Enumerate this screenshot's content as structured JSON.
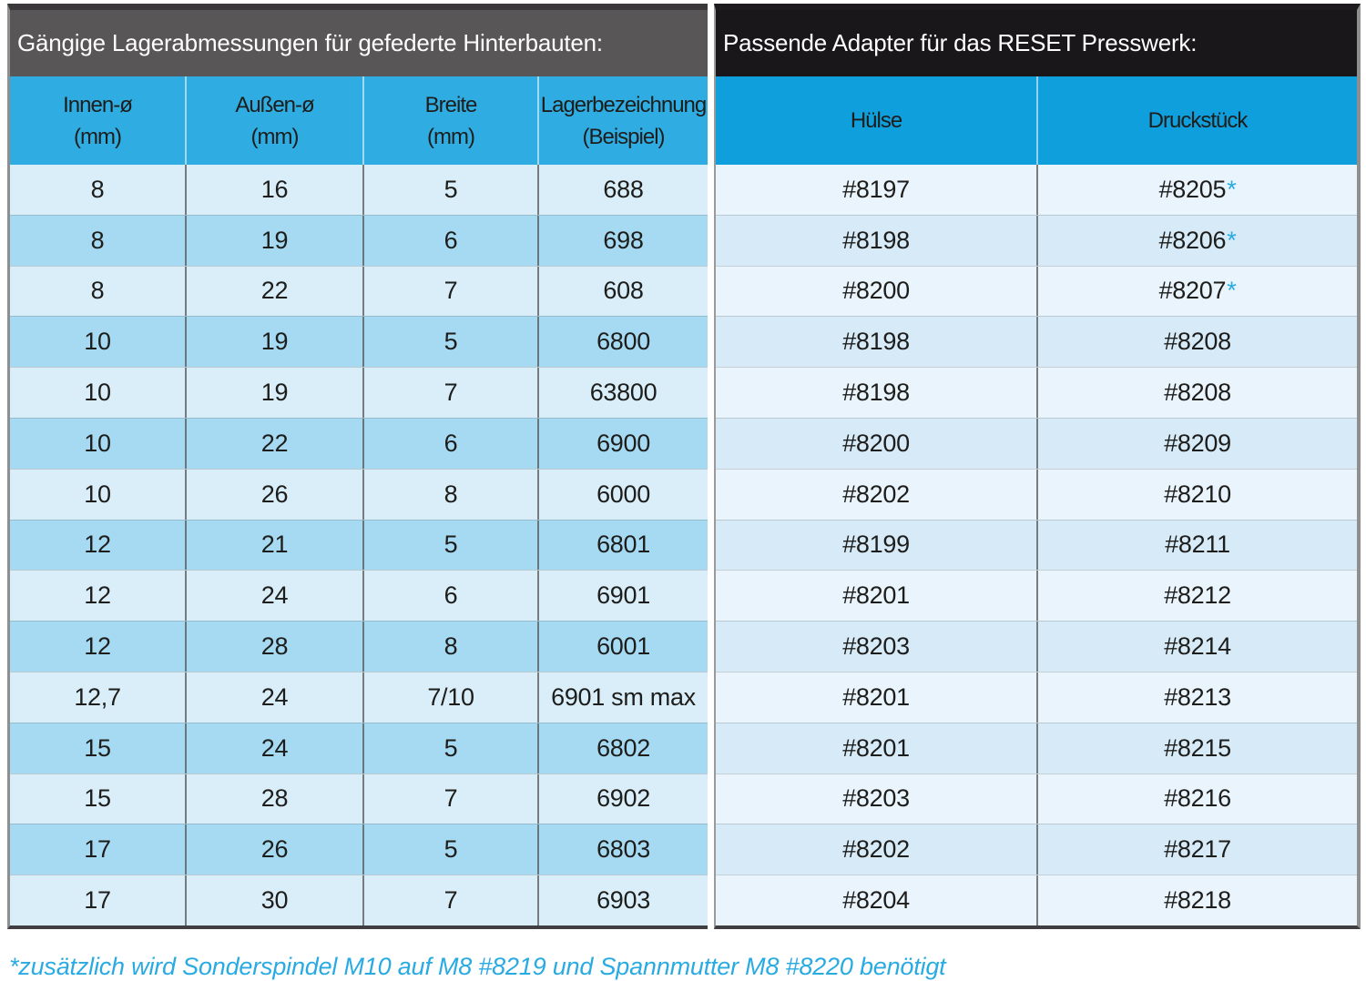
{
  "left_table": {
    "title": "Gängige Lagerabmessungen für gefederte Hinterbauten:",
    "columns": [
      {
        "line1": "Innen-ø",
        "line2": "(mm)"
      },
      {
        "line1": "Außen-ø",
        "line2": "(mm)"
      },
      {
        "line1": "Breite",
        "line2": "(mm)"
      },
      {
        "line1": "Lagerbezeichnung",
        "line2": "(Beispiel)"
      }
    ],
    "rows": [
      [
        "8",
        "16",
        "5",
        "688"
      ],
      [
        "8",
        "19",
        "6",
        "698"
      ],
      [
        "8",
        "22",
        "7",
        "608"
      ],
      [
        "10",
        "19",
        "5",
        "6800"
      ],
      [
        "10",
        "19",
        "7",
        "63800"
      ],
      [
        "10",
        "22",
        "6",
        "6900"
      ],
      [
        "10",
        "26",
        "8",
        "6000"
      ],
      [
        "12",
        "21",
        "5",
        "6801"
      ],
      [
        "12",
        "24",
        "6",
        "6901"
      ],
      [
        "12",
        "28",
        "8",
        "6001"
      ],
      [
        "12,7",
        "24",
        "7/10",
        "6901 sm max"
      ],
      [
        "15",
        "24",
        "5",
        "6802"
      ],
      [
        "15",
        "28",
        "7",
        "6902"
      ],
      [
        "17",
        "26",
        "5",
        "6803"
      ],
      [
        "17",
        "30",
        "7",
        "6903"
      ]
    ]
  },
  "right_table": {
    "title": "Passende Adapter für das RESET Presswerk:",
    "columns": [
      "Hülse",
      "Druckstück"
    ],
    "asterisk_symbol": "*",
    "rows": [
      {
        "huelse": "#8197",
        "druckstueck": "#8205",
        "asterisk": true
      },
      {
        "huelse": "#8198",
        "druckstueck": "#8206",
        "asterisk": true
      },
      {
        "huelse": "#8200",
        "druckstueck": "#8207",
        "asterisk": true
      },
      {
        "huelse": "#8198",
        "druckstueck": "#8208",
        "asterisk": false
      },
      {
        "huelse": "#8198",
        "druckstueck": "#8208",
        "asterisk": false
      },
      {
        "huelse": "#8200",
        "druckstueck": "#8209",
        "asterisk": false
      },
      {
        "huelse": "#8202",
        "druckstueck": "#8210",
        "asterisk": false
      },
      {
        "huelse": "#8199",
        "druckstueck": "#8211",
        "asterisk": false
      },
      {
        "huelse": "#8201",
        "druckstueck": "#8212",
        "asterisk": false
      },
      {
        "huelse": "#8203",
        "druckstueck": "#8214",
        "asterisk": false
      },
      {
        "huelse": "#8201",
        "druckstueck": "#8213",
        "asterisk": false
      },
      {
        "huelse": "#8201",
        "druckstueck": "#8215",
        "asterisk": false
      },
      {
        "huelse": "#8203",
        "druckstueck": "#8216",
        "asterisk": false
      },
      {
        "huelse": "#8202",
        "druckstueck": "#8217",
        "asterisk": false
      },
      {
        "huelse": "#8204",
        "druckstueck": "#8218",
        "asterisk": false
      }
    ]
  },
  "footnote": "*zusätzlich wird Sonderspindel M10 auf M8 #8219 und Spannmutter M8 #8220 benötigt",
  "colors": {
    "left_title_bg": "#585657",
    "right_title_bg": "#1a171b",
    "left_header_bg": "#2fade3",
    "right_header_bg": "#0e9fdc",
    "left_row_light": "#d9eef9",
    "left_row_dark": "#a6daf2",
    "right_row_light": "#e9f4fc",
    "right_row_dark": "#d7eaf7",
    "accent_blue": "#29abe2",
    "text_dark": "#1d1d1b",
    "text_light": "#ffffff"
  }
}
